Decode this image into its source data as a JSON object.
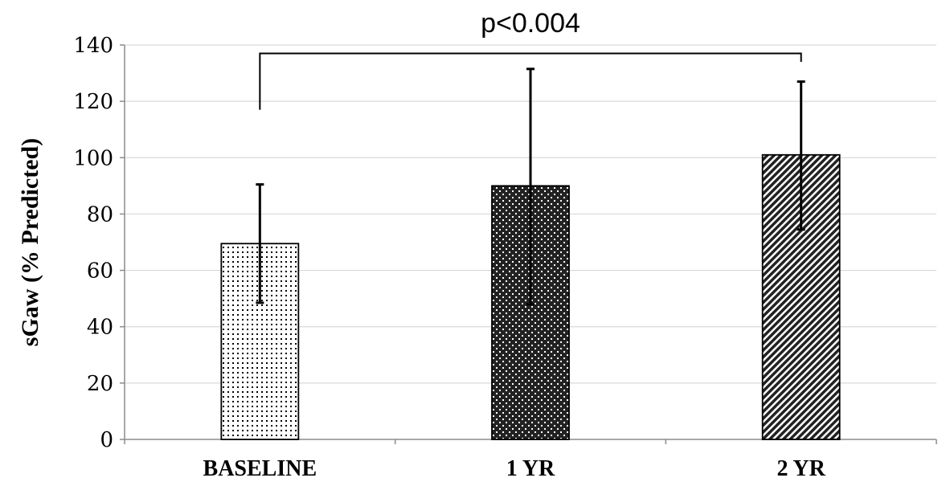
{
  "chart_data": {
    "type": "bar",
    "categories": [
      "BASELINE",
      "1 YR",
      "2 YR"
    ],
    "values": [
      69.5,
      90,
      101
    ],
    "error_bars": [
      {
        "low": 48.5,
        "high": 90.5
      },
      {
        "low": 48,
        "high": 131.5
      },
      {
        "low": 74.5,
        "high": 127
      }
    ],
    "bar_patterns": [
      "fine-dots",
      "checker-dots",
      "diagonal-stripes"
    ],
    "ylabel": "sGaw (% Predicted)",
    "ylim": [
      0,
      140
    ],
    "yticks": [
      0,
      20,
      40,
      60,
      80,
      100,
      120,
      140
    ],
    "grid": true,
    "annotation": {
      "text": "p<0.004",
      "from_category": "BASELINE",
      "to_category": "2 YR",
      "bracket_y": 137,
      "left_drop_y": 117,
      "right_drop_y": 134
    },
    "colors": {
      "grid": "#d9d9d9",
      "axis": "#8c8c8c",
      "bar_outline": "#000000",
      "pattern_ink": "#000000"
    }
  }
}
